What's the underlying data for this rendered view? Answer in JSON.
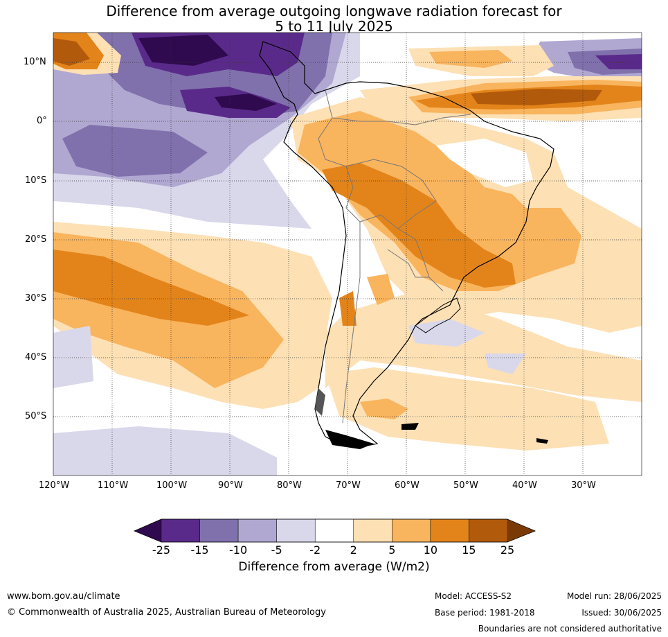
{
  "title_line1": "Difference from average outgoing longwave radiation forecast for",
  "title_line2": "5 to 11 July 2025",
  "lat_labels": [
    "10°N",
    "0°",
    "10°S",
    "20°S",
    "30°S",
    "40°S",
    "50°S"
  ],
  "lon_labels": [
    "120°W",
    "110°W",
    "100°W",
    "90°W",
    "80°W",
    "70°W",
    "60°W",
    "50°W",
    "40°W",
    "30°W"
  ],
  "colorbar": {
    "ticks": [
      "-25",
      "-15",
      "-10",
      "-5",
      "-2",
      "2",
      "5",
      "10",
      "15",
      "25"
    ],
    "colors": [
      "#2f0a4f",
      "#5a2a8a",
      "#8071ad",
      "#b0a8d1",
      "#d9d8eb",
      "#ffffff",
      "#fde0b4",
      "#f9b45e",
      "#e3841a",
      "#b25a0c",
      "#7a3a06"
    ],
    "label": "Difference from average (W/m2)"
  },
  "footer": {
    "website": "www.bom.gov.au/climate",
    "copyright": "© Commonwealth of Australia 2025, Australian Bureau of Meteorology",
    "model": "Model: ACCESS-S2",
    "base_period": "Base period: 1981-2018",
    "model_run": "Model run: 28/06/2025",
    "issued": "Issued: 30/06/2025",
    "disclaimer": "Boundaries are not considered authoritative"
  }
}
